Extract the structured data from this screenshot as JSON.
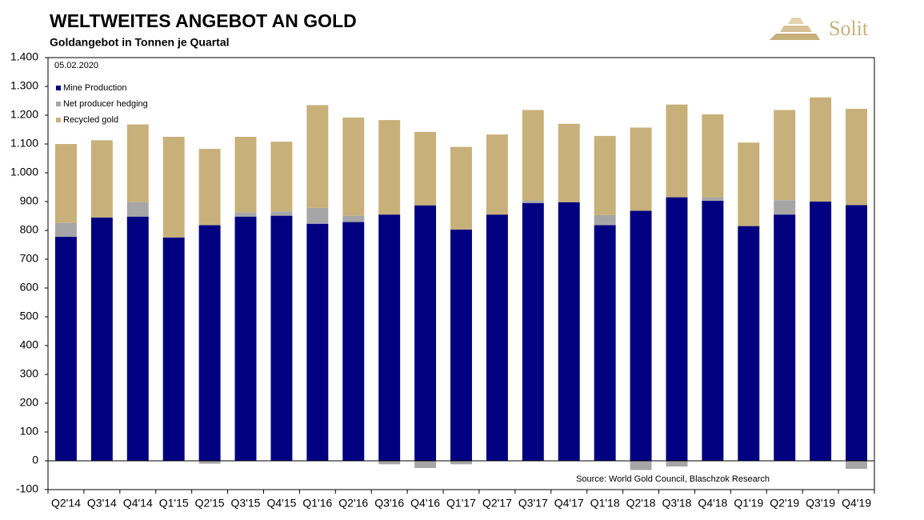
{
  "chart_data": {
    "type": "stacked_bar",
    "title": "WELTWEITES ANGEBOT AN GOLD",
    "subtitle": "Goldangebot in Tonnen je Quartal",
    "logo": "Solit",
    "date_note": "05.02.2020",
    "source": "Source: World Gold Council, Blaschzok Research",
    "categories": [
      "Q2'14",
      "Q3'14",
      "Q4'14",
      "Q1'15",
      "Q2'15",
      "Q3'15",
      "Q4'15",
      "Q1'16",
      "Q2'16",
      "Q3'16",
      "Q4'16",
      "Q1'17",
      "Q2'17",
      "Q3'17",
      "Q4'17",
      "Q1'18",
      "Q2'18",
      "Q3'18",
      "Q4'18",
      "Q1'19",
      "Q2'19",
      "Q3'19",
      "Q4'19"
    ],
    "series": [
      {
        "name": "Mine Production",
        "color": "#000080",
        "values": [
          778,
          845,
          848,
          775,
          818,
          848,
          851,
          823,
          829,
          855,
          887,
          803,
          855,
          895,
          898,
          818,
          868,
          915,
          903,
          815,
          855,
          900,
          888
        ]
      },
      {
        "name": "Net producer hedging",
        "color": "#a6a6a6",
        "values": [
          48,
          0,
          50,
          0,
          -10,
          15,
          15,
          55,
          22,
          -12,
          -25,
          -12,
          0,
          8,
          0,
          35,
          -32,
          -20,
          12,
          0,
          50,
          0,
          -28
        ]
      },
      {
        "name": "Recycled gold",
        "color": "#c8b07a",
        "values": [
          274,
          268,
          270,
          350,
          265,
          262,
          242,
          357,
          341,
          328,
          255,
          287,
          278,
          315,
          272,
          275,
          289,
          322,
          288,
          290,
          313,
          362,
          334
        ]
      }
    ],
    "ylim": [
      -100,
      1400
    ],
    "yticks": [
      -100,
      0,
      100,
      200,
      300,
      400,
      500,
      600,
      700,
      800,
      900,
      {
        "value": 1000,
        "label": "1.000"
      },
      {
        "value": 1100,
        "label": "1.100"
      },
      {
        "value": 1200,
        "label": "1.200"
      },
      {
        "value": 1300,
        "label": "1.300"
      },
      {
        "value": 1400,
        "label": "1.400"
      }
    ],
    "legend": "top-left"
  }
}
